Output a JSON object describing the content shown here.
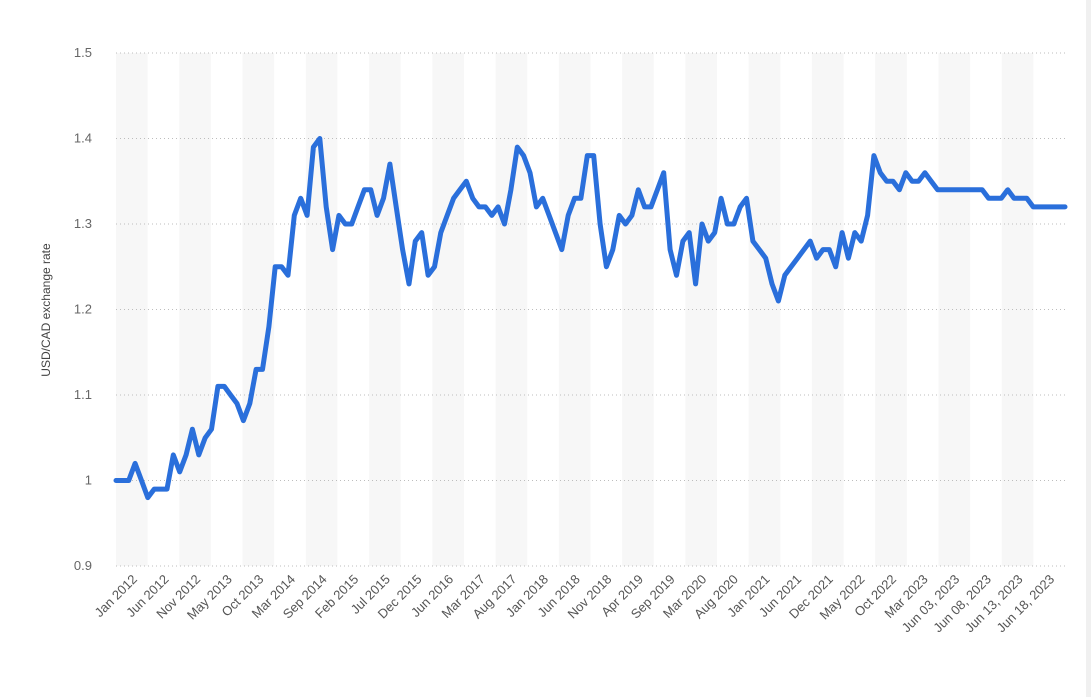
{
  "chart_data": {
    "type": "line",
    "ylabel": "USD/CAD exchange rate",
    "ylim": [
      0.9,
      1.5
    ],
    "yticks": [
      0.9,
      1,
      1.1,
      1.2,
      1.3,
      1.4,
      1.5
    ],
    "yticks_labels": [
      "0.9",
      "1",
      "1.1",
      "1.2",
      "1.3",
      "1.4",
      "1.5"
    ],
    "xtick_labels": [
      "Jan 2012",
      "Jun 2012",
      "Nov 2012",
      "May 2013",
      "Oct 2013",
      "Mar 2014",
      "Sep 2014",
      "Feb 2015",
      "Jul 2015",
      "Dec 2015",
      "Jun 2016",
      "Mar 2017",
      "Aug 2017",
      "Jan 2018",
      "Jun 2018",
      "Nov 2018",
      "Apr 2019",
      "Sep 2019",
      "Mar 2020",
      "Aug 2020",
      "Jan 2021",
      "Jun 2021",
      "Dec 2021",
      "May 2022",
      "Oct 2022",
      "Mar 2023",
      "Jun 03, 2023",
      "Jun 08, 2023",
      "Jun 13, 2023",
      "Jun 18, 2023"
    ],
    "grid": true,
    "series": [
      {
        "color": "#2a6fdb",
        "values": [
          1.0,
          1.0,
          1.0,
          1.02,
          1.0,
          0.98,
          0.99,
          0.99,
          0.99,
          1.03,
          1.01,
          1.03,
          1.06,
          1.03,
          1.05,
          1.06,
          1.11,
          1.11,
          1.1,
          1.09,
          1.07,
          1.09,
          1.13,
          1.13,
          1.18,
          1.25,
          1.25,
          1.24,
          1.31,
          1.33,
          1.31,
          1.39,
          1.4,
          1.32,
          1.27,
          1.31,
          1.3,
          1.3,
          1.32,
          1.34,
          1.34,
          1.31,
          1.33,
          1.37,
          1.32,
          1.27,
          1.23,
          1.28,
          1.29,
          1.24,
          1.25,
          1.29,
          1.31,
          1.33,
          1.34,
          1.35,
          1.33,
          1.32,
          1.32,
          1.31,
          1.32,
          1.3,
          1.34,
          1.39,
          1.38,
          1.36,
          1.32,
          1.33,
          1.31,
          1.29,
          1.27,
          1.31,
          1.33,
          1.33,
          1.38,
          1.38,
          1.3,
          1.25,
          1.27,
          1.31,
          1.3,
          1.31,
          1.34,
          1.32,
          1.32,
          1.34,
          1.36,
          1.27,
          1.24,
          1.28,
          1.29,
          1.23,
          1.3,
          1.28,
          1.29,
          1.33,
          1.3,
          1.3,
          1.32,
          1.33,
          1.28,
          1.27,
          1.26,
          1.23,
          1.21,
          1.24,
          1.25,
          1.26,
          1.27,
          1.28,
          1.26,
          1.27,
          1.27,
          1.25,
          1.29,
          1.26,
          1.29,
          1.28,
          1.31,
          1.38,
          1.36,
          1.35,
          1.35,
          1.34,
          1.36,
          1.35,
          1.35,
          1.36,
          1.35,
          1.34,
          1.34,
          1.34,
          1.34,
          1.34,
          1.34,
          1.34,
          1.34,
          1.33,
          1.33,
          1.33,
          1.34,
          1.33,
          1.33,
          1.33,
          1.32,
          1.32,
          1.32,
          1.32,
          1.32,
          1.32
        ]
      }
    ]
  }
}
